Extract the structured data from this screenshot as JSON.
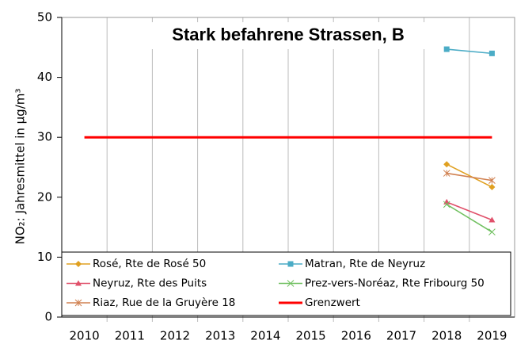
{
  "chart_data": {
    "type": "line",
    "title": "Stark befahrene Strassen, B",
    "y_label": "NO₂: Jahresmittel in µg/m³",
    "categories": [
      "2010",
      "2011",
      "2012",
      "2013",
      "2014",
      "2015",
      "2016",
      "2017",
      "2018",
      "2019"
    ],
    "ylim": [
      0,
      50
    ],
    "yticks": [
      0,
      10,
      20,
      30,
      40,
      50
    ],
    "grid": false,
    "legend": "bottom",
    "series": [
      {
        "name": "Rosé, Rte de Rosé 50",
        "color": "#e0a020",
        "marker": "diamond",
        "values": [
          null,
          null,
          null,
          null,
          null,
          null,
          null,
          null,
          25.5,
          21.7
        ]
      },
      {
        "name": "Matran, Rte de Neyruz",
        "color": "#4bacc6",
        "marker": "square",
        "values": [
          null,
          null,
          null,
          null,
          null,
          null,
          null,
          null,
          44.7,
          44.0
        ]
      },
      {
        "name": "Neyruz, Rte des Puits",
        "color": "#e0506a",
        "marker": "triangle",
        "values": [
          null,
          null,
          null,
          null,
          null,
          null,
          null,
          null,
          19.2,
          16.2
        ]
      },
      {
        "name": "Prez-vers-Noréaz, Rte Fribourg 50",
        "color": "#70c060",
        "marker": "x",
        "values": [
          null,
          null,
          null,
          null,
          null,
          null,
          null,
          null,
          18.8,
          14.2
        ]
      },
      {
        "name": "Riaz, Rue de la Gruyère 18",
        "color": "#d08050",
        "marker": "star",
        "values": [
          null,
          null,
          null,
          null,
          null,
          null,
          null,
          null,
          24.0,
          22.8
        ]
      },
      {
        "name": "Grenzwert",
        "color": "#ff0000",
        "marker": "none",
        "width": 3,
        "values": [
          30,
          30,
          30,
          30,
          30,
          30,
          30,
          30,
          30,
          30
        ]
      }
    ]
  }
}
